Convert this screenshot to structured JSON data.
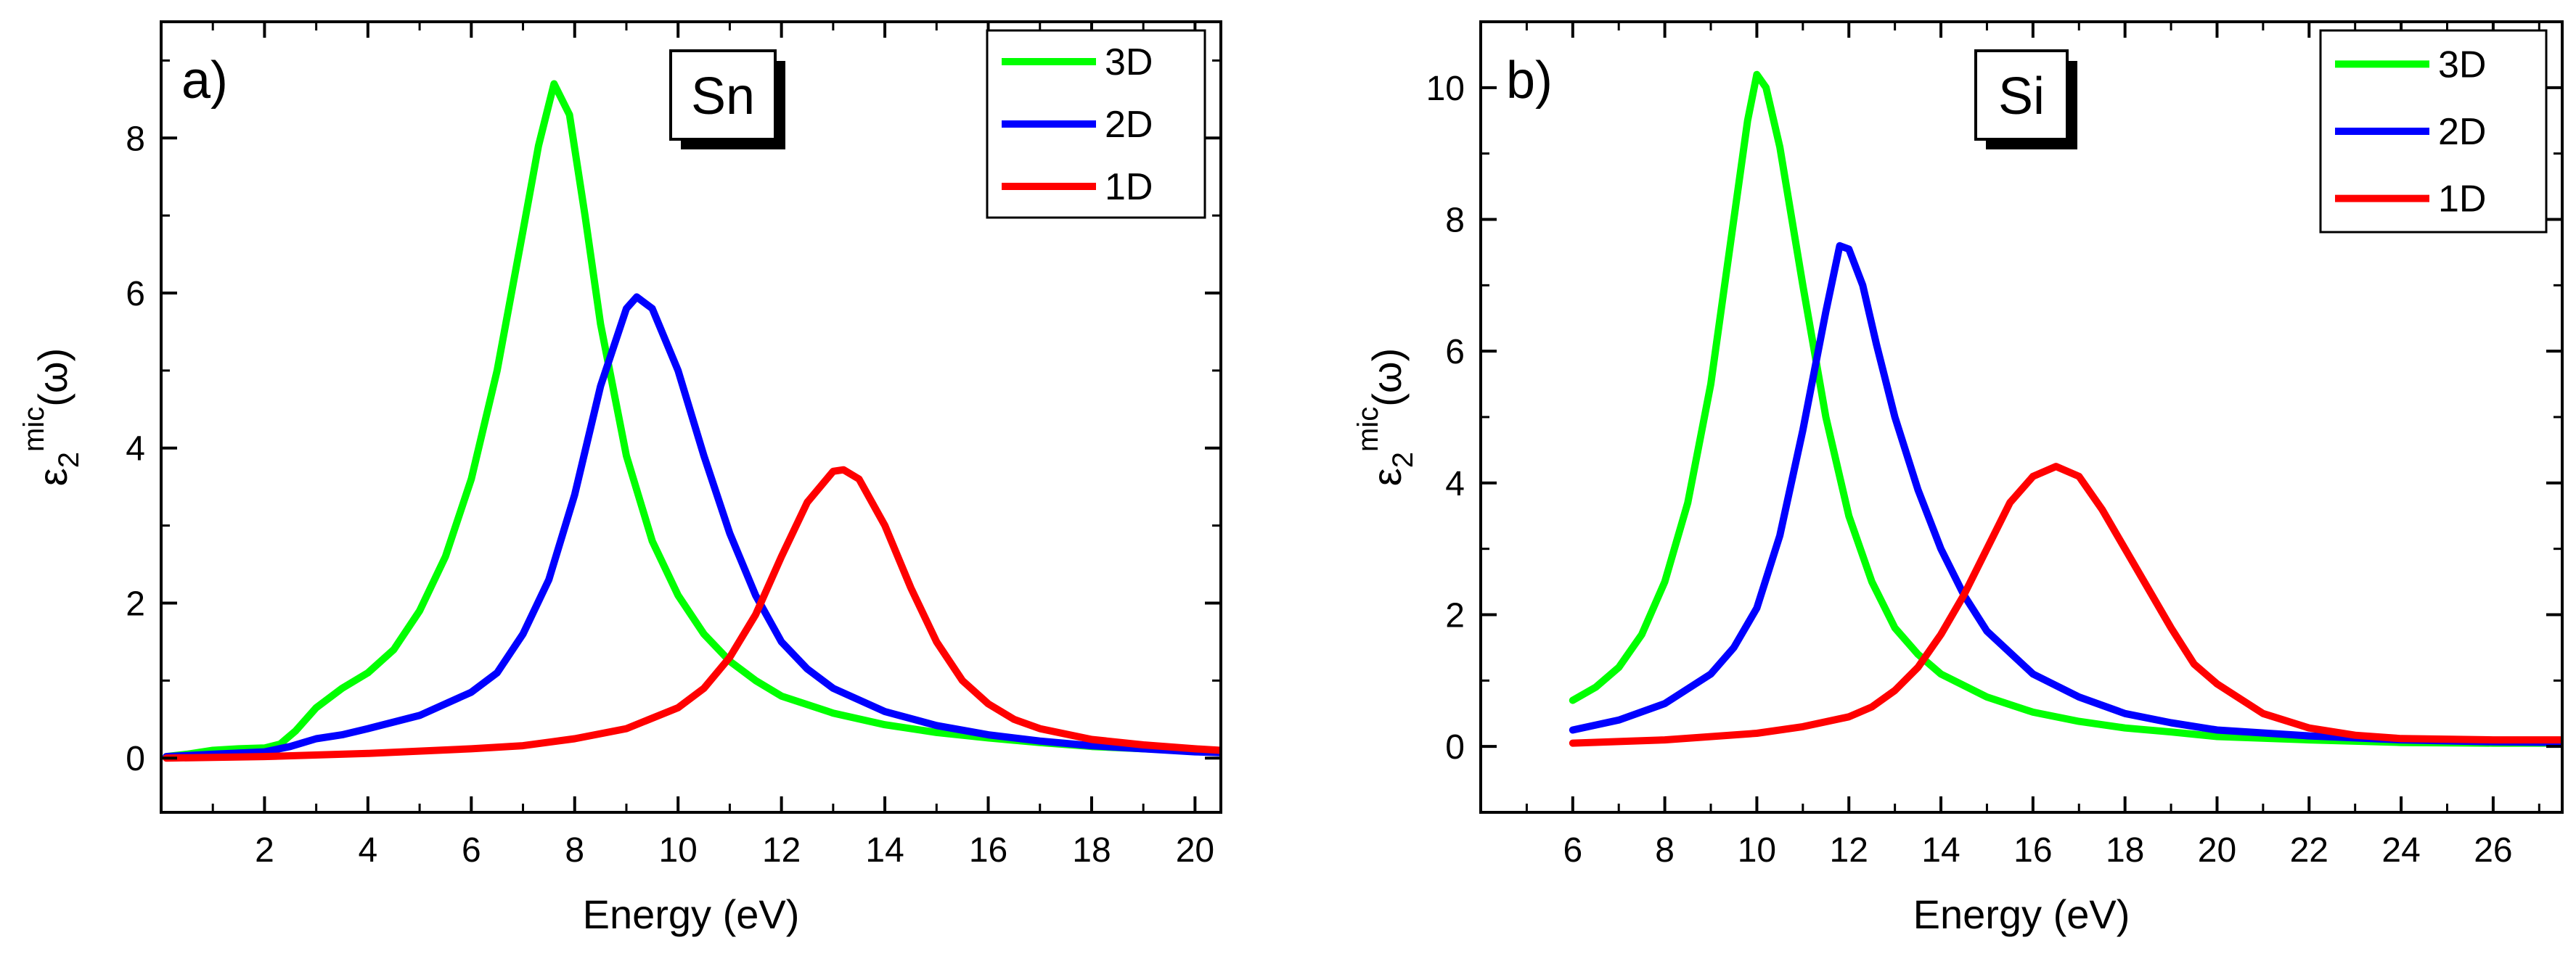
{
  "chart_data": [
    {
      "type": "line",
      "panel_label": "a)",
      "title": "Sn",
      "xlabel": "Energy (eV)",
      "ylabel": {
        "base": "ε",
        "sub": "2",
        "sup": "mic",
        "arg": "(ω)"
      },
      "xlim": [
        0,
        20.5
      ],
      "ylim": [
        -0.7,
        9.5
      ],
      "xticks": [
        2,
        4,
        6,
        8,
        10,
        12,
        14,
        16,
        18,
        20
      ],
      "xtick_labels": [
        "2",
        "4",
        "6",
        "8",
        "10",
        "12",
        "14",
        "16",
        "18",
        "20"
      ],
      "yticks": [
        0,
        2,
        4,
        6,
        8
      ],
      "ytick_labels": [
        "0",
        "2",
        "4",
        "6",
        "8"
      ],
      "legend_position": "top-right",
      "series": [
        {
          "name": "3D",
          "color": "#00ff00",
          "x": [
            0.1,
            0.5,
            1,
            1.5,
            2,
            2.3,
            2.6,
            3,
            3.5,
            4,
            4.5,
            5,
            5.5,
            6,
            6.5,
            7,
            7.3,
            7.6,
            7.9,
            8.2,
            8.5,
            9,
            9.5,
            10,
            10.5,
            11,
            11.5,
            12,
            13,
            14,
            15,
            16,
            17,
            18,
            19,
            20,
            20.5
          ],
          "y": [
            0.02,
            0.05,
            0.1,
            0.12,
            0.13,
            0.18,
            0.35,
            0.65,
            0.9,
            1.1,
            1.4,
            1.9,
            2.6,
            3.6,
            5.0,
            6.8,
            7.9,
            8.7,
            8.3,
            7.0,
            5.6,
            3.9,
            2.8,
            2.1,
            1.6,
            1.25,
            1.0,
            0.8,
            0.58,
            0.43,
            0.33,
            0.26,
            0.2,
            0.15,
            0.12,
            0.1,
            0.09
          ]
        },
        {
          "name": "2D",
          "color": "#0000ff",
          "x": [
            0.1,
            1,
            2,
            2.5,
            3,
            3.5,
            4,
            5,
            6,
            6.5,
            7,
            7.5,
            8,
            8.5,
            9,
            9.2,
            9.5,
            10,
            10.5,
            11,
            11.5,
            12,
            12.5,
            13,
            14,
            15,
            16,
            17,
            18,
            19,
            20,
            20.5
          ],
          "y": [
            0.02,
            0.05,
            0.08,
            0.15,
            0.25,
            0.3,
            0.38,
            0.55,
            0.85,
            1.1,
            1.6,
            2.3,
            3.4,
            4.8,
            5.8,
            5.95,
            5.8,
            5.0,
            3.9,
            2.9,
            2.1,
            1.5,
            1.15,
            0.9,
            0.6,
            0.42,
            0.3,
            0.22,
            0.16,
            0.12,
            0.08,
            0.07
          ]
        },
        {
          "name": "1D",
          "color": "#ff0000",
          "x": [
            0.1,
            2,
            4,
            6,
            7,
            8,
            9,
            10,
            10.5,
            11,
            11.5,
            12,
            12.5,
            13,
            13.2,
            13.5,
            14,
            14.5,
            15,
            15.5,
            16,
            16.5,
            17,
            18,
            19,
            20,
            20.5
          ],
          "y": [
            0.0,
            0.02,
            0.06,
            0.12,
            0.16,
            0.25,
            0.38,
            0.65,
            0.9,
            1.3,
            1.85,
            2.6,
            3.3,
            3.7,
            3.72,
            3.6,
            3.0,
            2.2,
            1.5,
            1.0,
            0.7,
            0.5,
            0.38,
            0.24,
            0.17,
            0.12,
            0.1
          ]
        }
      ]
    },
    {
      "type": "line",
      "panel_label": "b)",
      "title": "Si",
      "xlabel": "Energy (eV)",
      "ylabel": {
        "base": "ε",
        "sub": "2",
        "sup": "mic",
        "arg": "(ω)"
      },
      "xlim": [
        4,
        27.5
      ],
      "ylim": [
        -1,
        11
      ],
      "xticks": [
        6,
        8,
        10,
        12,
        14,
        16,
        18,
        20,
        22,
        24,
        26
      ],
      "xtick_labels": [
        "6",
        "8",
        "10",
        "12",
        "14",
        "16",
        "18",
        "20",
        "22",
        "24",
        "26"
      ],
      "yticks": [
        0,
        2,
        4,
        6,
        8,
        10
      ],
      "ytick_labels": [
        "0",
        "2",
        "4",
        "6",
        "8",
        "10"
      ],
      "legend_position": "top-right",
      "series": [
        {
          "name": "3D",
          "color": "#00ff00",
          "x": [
            6,
            6.5,
            7,
            7.5,
            8,
            8.5,
            9,
            9.5,
            9.8,
            10,
            10.2,
            10.5,
            11,
            11.5,
            12,
            12.5,
            13,
            13.5,
            14,
            15,
            16,
            17,
            18,
            19,
            20,
            22,
            24,
            26,
            27.5
          ],
          "y": [
            0.7,
            0.9,
            1.2,
            1.7,
            2.5,
            3.7,
            5.5,
            8.0,
            9.5,
            10.2,
            10.0,
            9.1,
            7.0,
            5.0,
            3.5,
            2.5,
            1.8,
            1.4,
            1.1,
            0.75,
            0.52,
            0.38,
            0.28,
            0.22,
            0.15,
            0.1,
            0.06,
            0.05,
            0.05
          ]
        },
        {
          "name": "2D",
          "color": "#0000ff",
          "x": [
            6,
            7,
            8,
            9,
            9.5,
            10,
            10.5,
            11,
            11.5,
            11.8,
            12,
            12.3,
            12.6,
            13,
            13.5,
            14,
            14.5,
            15,
            16,
            17,
            18,
            19,
            20,
            22,
            24,
            26,
            27.5
          ],
          "y": [
            0.25,
            0.4,
            0.65,
            1.1,
            1.5,
            2.1,
            3.2,
            4.8,
            6.6,
            7.6,
            7.55,
            7.0,
            6.1,
            5.0,
            3.9,
            3.0,
            2.3,
            1.75,
            1.1,
            0.75,
            0.5,
            0.36,
            0.25,
            0.16,
            0.1,
            0.07,
            0.06
          ]
        },
        {
          "name": "1D",
          "color": "#ff0000",
          "x": [
            6,
            8,
            10,
            11,
            12,
            12.5,
            13,
            13.5,
            14,
            14.5,
            15,
            15.5,
            16,
            16.5,
            17,
            17.5,
            18,
            18.5,
            19,
            19.5,
            20,
            21,
            22,
            23,
            24,
            26,
            27.5
          ],
          "y": [
            0.05,
            0.1,
            0.2,
            0.3,
            0.45,
            0.6,
            0.85,
            1.2,
            1.7,
            2.3,
            3.0,
            3.7,
            4.1,
            4.25,
            4.1,
            3.6,
            3.0,
            2.4,
            1.8,
            1.25,
            0.95,
            0.5,
            0.28,
            0.17,
            0.12,
            0.1,
            0.1
          ]
        }
      ]
    }
  ]
}
